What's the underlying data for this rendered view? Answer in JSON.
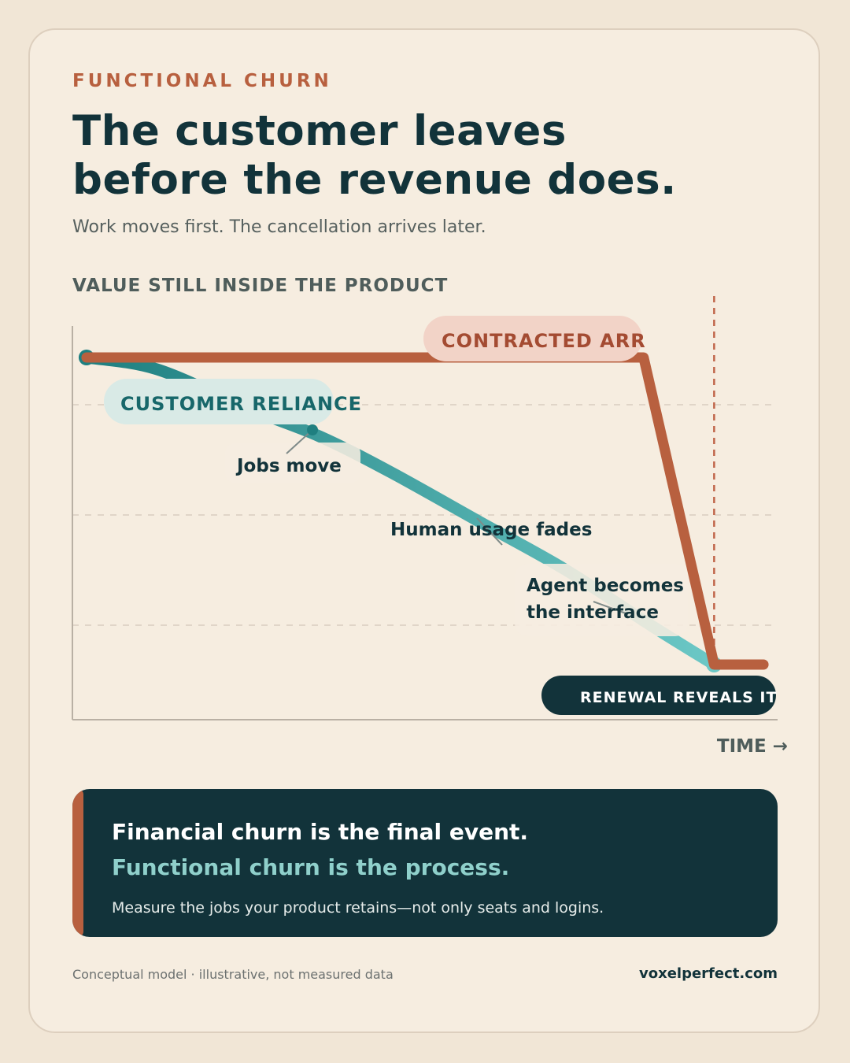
{
  "kicker": "FUNCTIONAL CHURN",
  "headline": {
    "line1": "The customer leaves",
    "line2": "before the revenue does."
  },
  "subtitle": "Work moves first. The cancellation arrives later.",
  "chart_label": "VALUE STILL INSIDE THE PRODUCT",
  "chart_data": {
    "type": "line",
    "ylabel": "VALUE STILL INSIDE THE PRODUCT",
    "xlabel": "TIME →",
    "ylim": [
      0,
      100
    ],
    "xlim": [
      0,
      100
    ],
    "grid": true,
    "series": [
      {
        "name": "CONTRACTED ARR",
        "color": "#b8603f",
        "x": [
          2,
          81,
          91,
          98
        ],
        "y": [
          92,
          92,
          14,
          14
        ]
      },
      {
        "name": "CUSTOMER RELIANCE",
        "color": "#2a8f8e",
        "x": [
          2,
          12,
          25,
          35,
          45,
          58,
          70,
          82,
          91
        ],
        "y": [
          92,
          89,
          79,
          72,
          63,
          50,
          38,
          24,
          14
        ]
      }
    ],
    "annotations": [
      {
        "text": "Jobs move",
        "x": 34,
        "y": 73
      },
      {
        "text": "Human usage fades",
        "x": 61,
        "y": 48
      },
      {
        "text": [
          "Agent becomes",
          "the interface"
        ],
        "x": 76,
        "y": 29
      }
    ],
    "marker": {
      "text": "RENEWAL REVEALS IT",
      "x": 91
    }
  },
  "callout": {
    "line1": "Financial churn is the final event.",
    "line2": "Functional churn is the process.",
    "line3": "Measure the jobs your product retains—not only seats and logins."
  },
  "footnote": "Conceptual model · illustrative, not measured data",
  "site": "voxelperfect.com"
}
